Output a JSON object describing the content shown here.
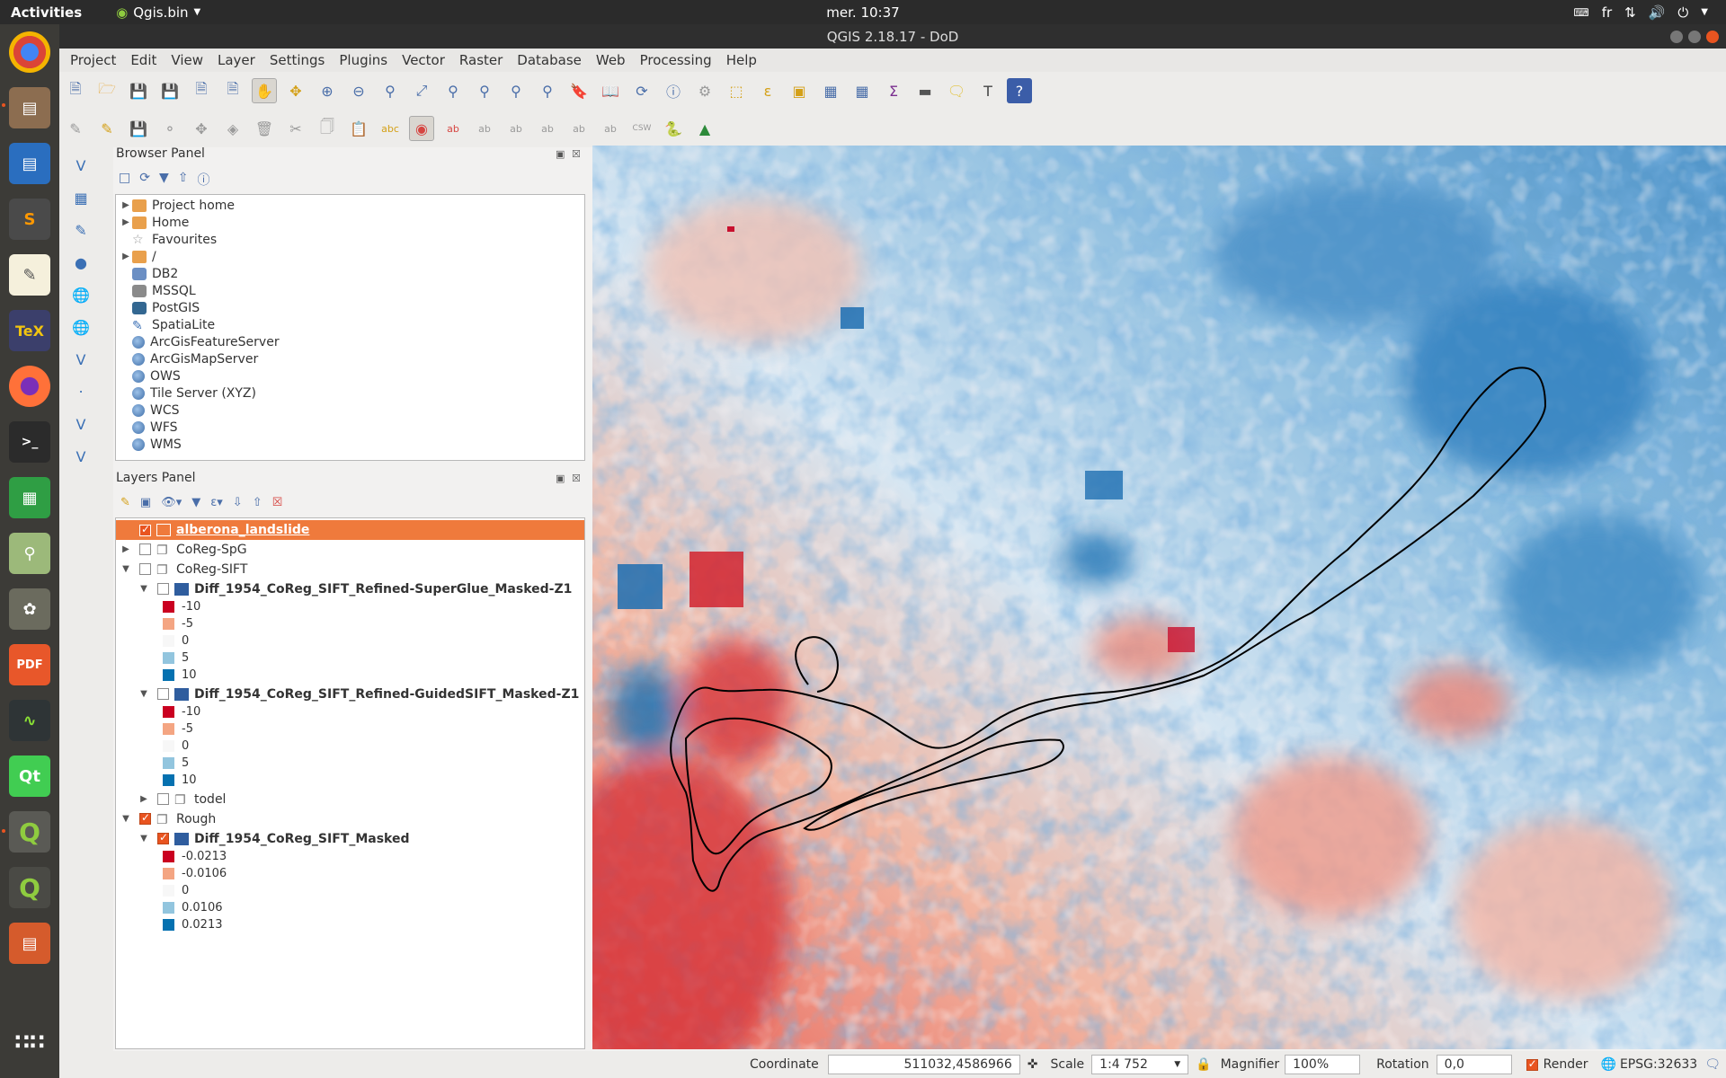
{
  "topbar": {
    "activities": "Activities",
    "app_name": "Qgis.bin",
    "clock": "mer. 10:37",
    "keyboard": "fr"
  },
  "window": {
    "title": "QGIS 2.18.17 - DoD"
  },
  "menu": [
    "Project",
    "Edit",
    "View",
    "Layer",
    "Settings",
    "Plugins",
    "Vector",
    "Raster",
    "Database",
    "Web",
    "Processing",
    "Help"
  ],
  "browser": {
    "title": "Browser Panel",
    "items": [
      {
        "label": "Project home",
        "icon": "folder-icon",
        "expandable": true
      },
      {
        "label": "Home",
        "icon": "folder-icon",
        "expandable": true
      },
      {
        "label": "Favourites",
        "icon": "star-icon",
        "expandable": false
      },
      {
        "label": "/",
        "icon": "folder-icon",
        "expandable": true
      },
      {
        "label": "DB2",
        "icon": "db2-icon",
        "expandable": false
      },
      {
        "label": "MSSQL",
        "icon": "mssql-icon",
        "expandable": false
      },
      {
        "label": "PostGIS",
        "icon": "postgis-icon",
        "expandable": false
      },
      {
        "label": "SpatiaLite",
        "icon": "spatialite-icon",
        "expandable": false
      },
      {
        "label": "ArcGisFeatureServer",
        "icon": "arcgis-icon",
        "expandable": false
      },
      {
        "label": "ArcGisMapServer",
        "icon": "arcgis-icon",
        "expandable": false
      },
      {
        "label": "OWS",
        "icon": "globe-icon",
        "expandable": false
      },
      {
        "label": "Tile Server (XYZ)",
        "icon": "globe-icon",
        "expandable": false
      },
      {
        "label": "WCS",
        "icon": "globe-icon",
        "expandable": false
      },
      {
        "label": "WFS",
        "icon": "globe-icon",
        "expandable": false
      },
      {
        "label": "WMS",
        "icon": "globe-icon",
        "expandable": false
      }
    ]
  },
  "layers": {
    "title": "Layers Panel",
    "items": [
      {
        "label": "alberona_landslide",
        "checked": true,
        "selected": true,
        "level": 0,
        "kind": "vector"
      },
      {
        "label": "CoReg-SpG",
        "checked": false,
        "level": 0,
        "kind": "group",
        "expandable": true
      },
      {
        "label": "CoReg-SIFT",
        "checked": false,
        "level": 0,
        "kind": "group",
        "expanded": true
      },
      {
        "label": "Diff_1954_CoReg_SIFT_Refined-SuperGlue_Masked-Z1",
        "checked": false,
        "level": 1,
        "kind": "raster",
        "expanded": true
      },
      {
        "label": "Diff_1954_CoReg_SIFT_Refined-GuidedSIFT_Masked-Z1",
        "checked": false,
        "level": 1,
        "kind": "raster",
        "expanded": true
      },
      {
        "label": "todel",
        "checked": false,
        "level": 1,
        "kind": "group",
        "expandable": true
      },
      {
        "label": "Rough",
        "checked": true,
        "level": 0,
        "kind": "group",
        "expanded": true
      },
      {
        "label": "Diff_1954_CoReg_SIFT_Masked",
        "checked": true,
        "level": 1,
        "kind": "raster",
        "expanded": true
      }
    ],
    "legend_a": [
      "-10",
      "-5",
      "0",
      "5",
      "10"
    ],
    "legend_b": [
      "-10",
      "-5",
      "0",
      "5",
      "10"
    ],
    "legend_c": [
      "-0.0213",
      "-0.0106",
      "0",
      "0.0106",
      "0.0213"
    ],
    "legend_colors": [
      "#ca0020",
      "#f4a582",
      "#f7f7f7",
      "#92c5de",
      "#0571b0"
    ]
  },
  "status": {
    "coordinate_label": "Coordinate",
    "coordinate_value": "511032,4586966",
    "scale_label": "Scale",
    "scale_value": "1:4 752",
    "magnifier_label": "Magnifier",
    "magnifier_value": "100%",
    "rotation_label": "Rotation",
    "rotation_value": "0,0",
    "render_label": "Render",
    "crs": "EPSG:32633"
  }
}
